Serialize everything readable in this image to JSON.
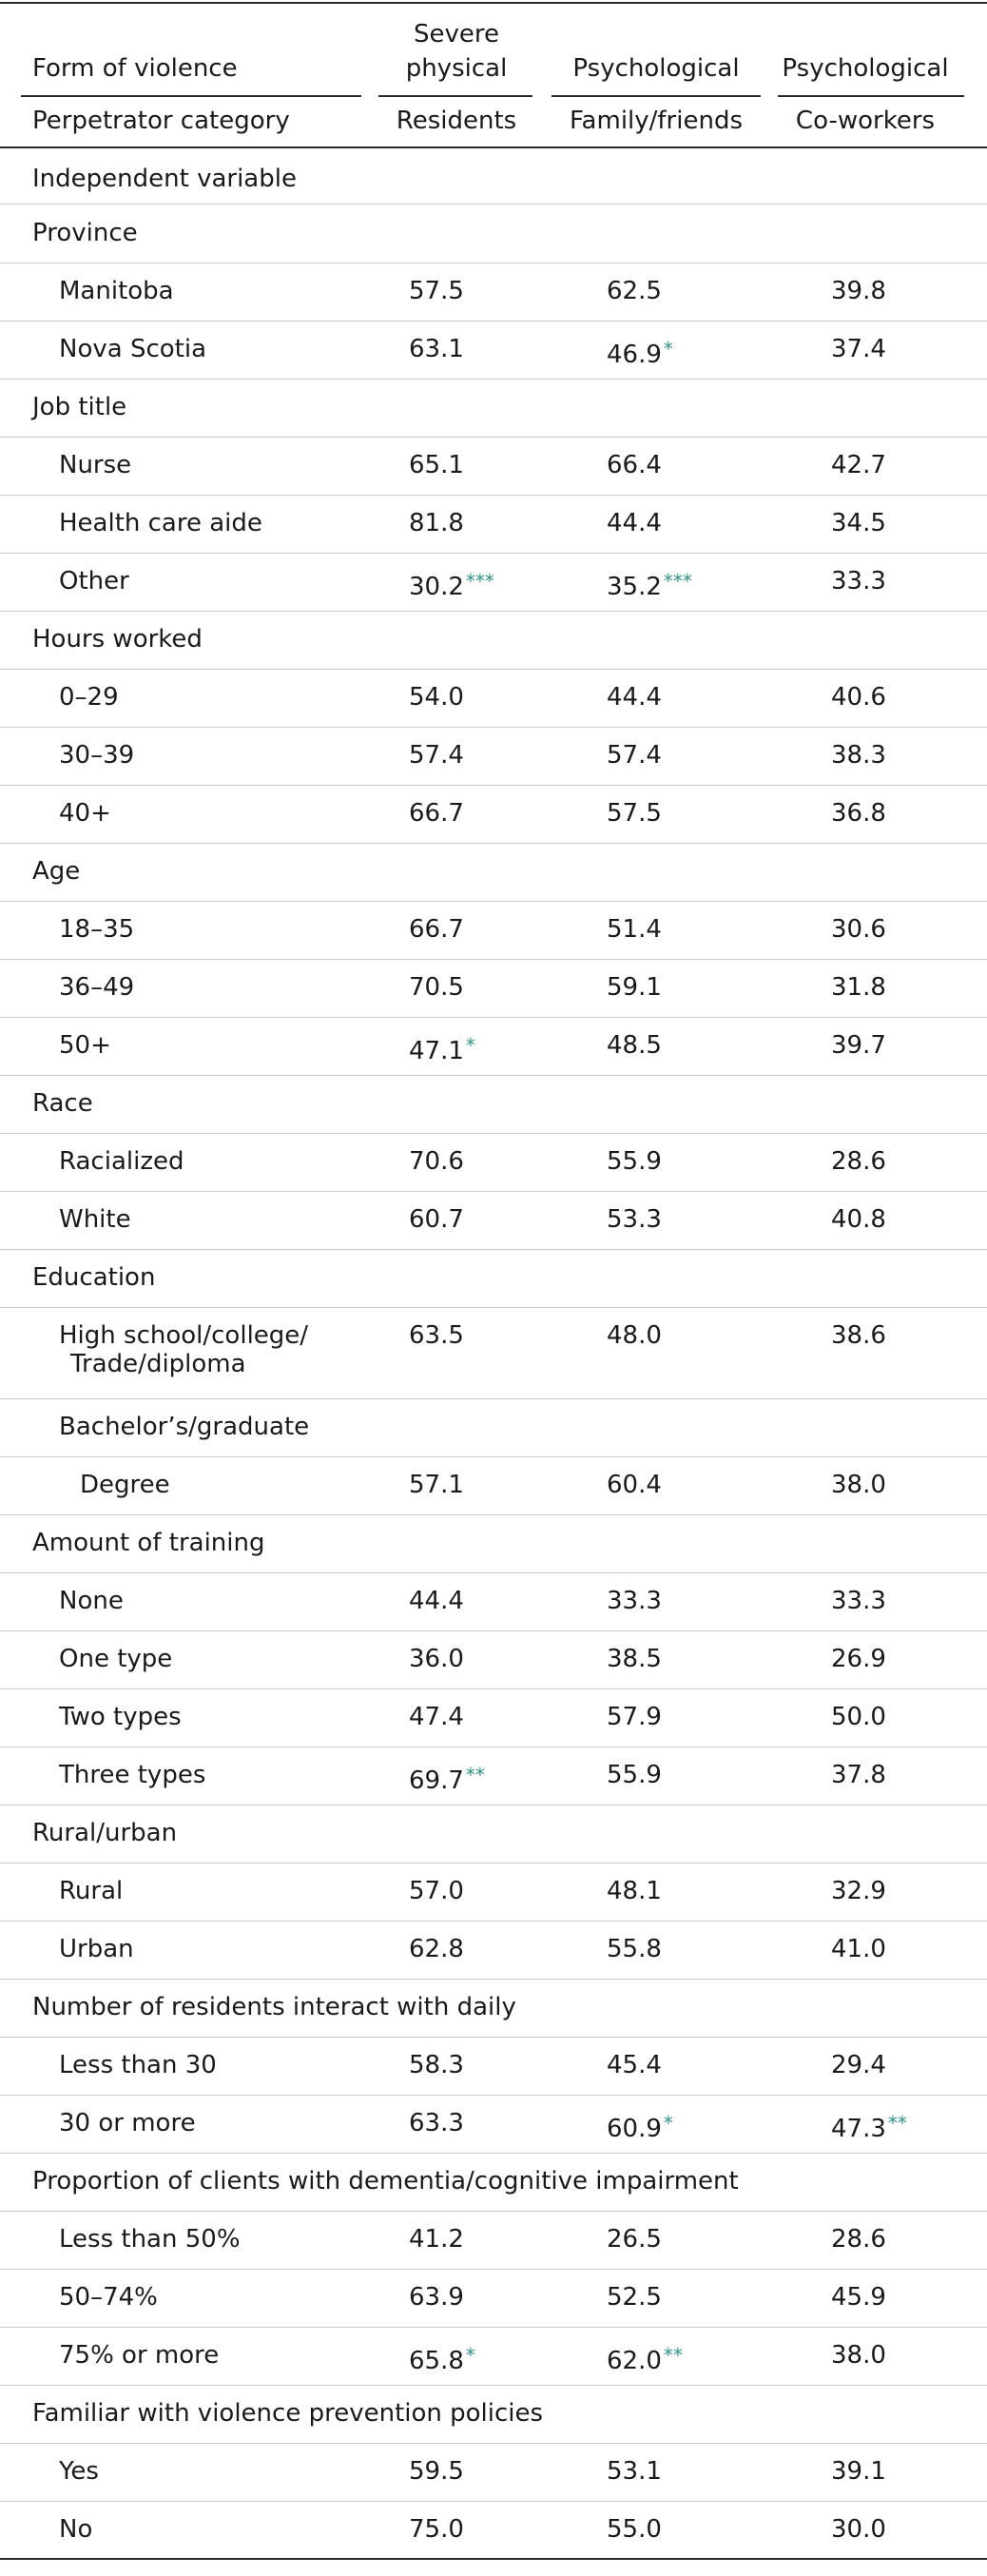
{
  "header": {
    "row1_label": "Form of violence",
    "row2_label": "Perpetrator category",
    "columns": [
      {
        "form_line1": "Severe",
        "form_line2": "physical",
        "perpetrator": "Residents"
      },
      {
        "form_line1": "",
        "form_line2": "Psychological",
        "perpetrator": "Family/friends"
      },
      {
        "form_line1": "",
        "form_line2": "Psychological",
        "perpetrator": "Co-workers"
      }
    ]
  },
  "independent_variable_label": "Independent variable",
  "rows": [
    {
      "kind": "group",
      "label": "Province"
    },
    {
      "kind": "data",
      "indent": 1,
      "label": "Manitoba",
      "values": [
        {
          "v": "57.5",
          "sig": ""
        },
        {
          "v": "62.5",
          "sig": ""
        },
        {
          "v": "39.8",
          "sig": ""
        }
      ]
    },
    {
      "kind": "data",
      "indent": 1,
      "label": "Nova Scotia",
      "values": [
        {
          "v": "63.1",
          "sig": ""
        },
        {
          "v": "46.9",
          "sig": "*"
        },
        {
          "v": "37.4",
          "sig": ""
        }
      ]
    },
    {
      "kind": "group",
      "label": "Job title"
    },
    {
      "kind": "data",
      "indent": 1,
      "label": "Nurse",
      "values": [
        {
          "v": "65.1",
          "sig": ""
        },
        {
          "v": "66.4",
          "sig": ""
        },
        {
          "v": "42.7",
          "sig": ""
        }
      ]
    },
    {
      "kind": "data",
      "indent": 1,
      "label": "Health care aide",
      "values": [
        {
          "v": "81.8",
          "sig": ""
        },
        {
          "v": "44.4",
          "sig": ""
        },
        {
          "v": "34.5",
          "sig": ""
        }
      ]
    },
    {
      "kind": "data",
      "indent": 1,
      "label": "Other",
      "values": [
        {
          "v": "30.2",
          "sig": "***"
        },
        {
          "v": "35.2",
          "sig": "***"
        },
        {
          "v": "33.3",
          "sig": ""
        }
      ]
    },
    {
      "kind": "group",
      "label": "Hours worked"
    },
    {
      "kind": "data",
      "indent": 1,
      "label": "0–29",
      "values": [
        {
          "v": "54.0",
          "sig": ""
        },
        {
          "v": "44.4",
          "sig": ""
        },
        {
          "v": "40.6",
          "sig": ""
        }
      ]
    },
    {
      "kind": "data",
      "indent": 1,
      "label": "30–39",
      "values": [
        {
          "v": "57.4",
          "sig": ""
        },
        {
          "v": "57.4",
          "sig": ""
        },
        {
          "v": "38.3",
          "sig": ""
        }
      ]
    },
    {
      "kind": "data",
      "indent": 1,
      "label": "40+",
      "values": [
        {
          "v": "66.7",
          "sig": ""
        },
        {
          "v": "57.5",
          "sig": ""
        },
        {
          "v": "36.8",
          "sig": ""
        }
      ]
    },
    {
      "kind": "group",
      "label": "Age"
    },
    {
      "kind": "data",
      "indent": 1,
      "label": "18–35",
      "values": [
        {
          "v": "66.7",
          "sig": ""
        },
        {
          "v": "51.4",
          "sig": ""
        },
        {
          "v": "30.6",
          "sig": ""
        }
      ]
    },
    {
      "kind": "data",
      "indent": 1,
      "label": "36–49",
      "values": [
        {
          "v": "70.5",
          "sig": ""
        },
        {
          "v": "59.1",
          "sig": ""
        },
        {
          "v": "31.8",
          "sig": ""
        }
      ]
    },
    {
      "kind": "data",
      "indent": 1,
      "label": "50+",
      "values": [
        {
          "v": "47.1",
          "sig": "*"
        },
        {
          "v": "48.5",
          "sig": ""
        },
        {
          "v": "39.7",
          "sig": ""
        }
      ]
    },
    {
      "kind": "group",
      "label": "Race"
    },
    {
      "kind": "data",
      "indent": 1,
      "label": "Racialized",
      "values": [
        {
          "v": "70.6",
          "sig": ""
        },
        {
          "v": "55.9",
          "sig": ""
        },
        {
          "v": "28.6",
          "sig": ""
        }
      ]
    },
    {
      "kind": "data",
      "indent": 1,
      "label": "White",
      "values": [
        {
          "v": "60.7",
          "sig": ""
        },
        {
          "v": "53.3",
          "sig": ""
        },
        {
          "v": "40.8",
          "sig": ""
        }
      ]
    },
    {
      "kind": "group",
      "label": "Education"
    },
    {
      "kind": "data2",
      "indent": 1,
      "label": "High school/college/",
      "label2": "Trade/diploma",
      "values": [
        {
          "v": "63.5",
          "sig": ""
        },
        {
          "v": "48.0",
          "sig": ""
        },
        {
          "v": "38.6",
          "sig": ""
        }
      ]
    },
    {
      "kind": "sub",
      "indent": 1,
      "label": "Bachelor’s/graduate"
    },
    {
      "kind": "data",
      "indent": 2,
      "label": "Degree",
      "values": [
        {
          "v": "57.1",
          "sig": ""
        },
        {
          "v": "60.4",
          "sig": ""
        },
        {
          "v": "38.0",
          "sig": ""
        }
      ]
    },
    {
      "kind": "group",
      "label": "Amount of training"
    },
    {
      "kind": "data",
      "indent": 1,
      "label": "None",
      "values": [
        {
          "v": "44.4",
          "sig": ""
        },
        {
          "v": "33.3",
          "sig": ""
        },
        {
          "v": "33.3",
          "sig": ""
        }
      ]
    },
    {
      "kind": "data",
      "indent": 1,
      "label": "One type",
      "values": [
        {
          "v": "36.0",
          "sig": ""
        },
        {
          "v": "38.5",
          "sig": ""
        },
        {
          "v": "26.9",
          "sig": ""
        }
      ]
    },
    {
      "kind": "data",
      "indent": 1,
      "label": "Two types",
      "values": [
        {
          "v": "47.4",
          "sig": ""
        },
        {
          "v": "57.9",
          "sig": ""
        },
        {
          "v": "50.0",
          "sig": ""
        }
      ]
    },
    {
      "kind": "data",
      "indent": 1,
      "label": "Three types",
      "values": [
        {
          "v": "69.7",
          "sig": "**"
        },
        {
          "v": "55.9",
          "sig": ""
        },
        {
          "v": "37.8",
          "sig": ""
        }
      ]
    },
    {
      "kind": "group",
      "label": "Rural/urban"
    },
    {
      "kind": "data",
      "indent": 1,
      "label": "Rural",
      "values": [
        {
          "v": "57.0",
          "sig": ""
        },
        {
          "v": "48.1",
          "sig": ""
        },
        {
          "v": "32.9",
          "sig": ""
        }
      ]
    },
    {
      "kind": "data",
      "indent": 1,
      "label": "Urban",
      "values": [
        {
          "v": "62.8",
          "sig": ""
        },
        {
          "v": "55.8",
          "sig": ""
        },
        {
          "v": "41.0",
          "sig": ""
        }
      ]
    },
    {
      "kind": "group",
      "label": "Number of residents interact with daily"
    },
    {
      "kind": "data",
      "indent": 1,
      "label": "Less than 30",
      "values": [
        {
          "v": "58.3",
          "sig": ""
        },
        {
          "v": "45.4",
          "sig": ""
        },
        {
          "v": "29.4",
          "sig": ""
        }
      ]
    },
    {
      "kind": "data",
      "indent": 1,
      "label": "30 or more",
      "values": [
        {
          "v": "63.3",
          "sig": ""
        },
        {
          "v": "60.9",
          "sig": "*"
        },
        {
          "v": "47.3",
          "sig": "**"
        }
      ]
    },
    {
      "kind": "group",
      "label": "Proportion of clients with dementia/cognitive impairment"
    },
    {
      "kind": "data",
      "indent": 1,
      "label": "Less than 50%",
      "values": [
        {
          "v": "41.2",
          "sig": ""
        },
        {
          "v": "26.5",
          "sig": ""
        },
        {
          "v": "28.6",
          "sig": ""
        }
      ]
    },
    {
      "kind": "data",
      "indent": 1,
      "label": "50–74%",
      "values": [
        {
          "v": "63.9",
          "sig": ""
        },
        {
          "v": "52.5",
          "sig": ""
        },
        {
          "v": "45.9",
          "sig": ""
        }
      ]
    },
    {
      "kind": "data",
      "indent": 1,
      "label": "75% or more",
      "values": [
        {
          "v": "65.8",
          "sig": "*"
        },
        {
          "v": "62.0",
          "sig": "**"
        },
        {
          "v": "38.0",
          "sig": ""
        }
      ]
    },
    {
      "kind": "group",
      "label": "Familiar with violence prevention policies"
    },
    {
      "kind": "data",
      "indent": 1,
      "label": "Yes",
      "values": [
        {
          "v": "59.5",
          "sig": ""
        },
        {
          "v": "53.1",
          "sig": ""
        },
        {
          "v": "39.1",
          "sig": ""
        }
      ]
    },
    {
      "kind": "data",
      "indent": 1,
      "label": "No",
      "values": [
        {
          "v": "75.0",
          "sig": ""
        },
        {
          "v": "55.0",
          "sig": ""
        },
        {
          "v": "30.0",
          "sig": ""
        }
      ]
    }
  ]
}
